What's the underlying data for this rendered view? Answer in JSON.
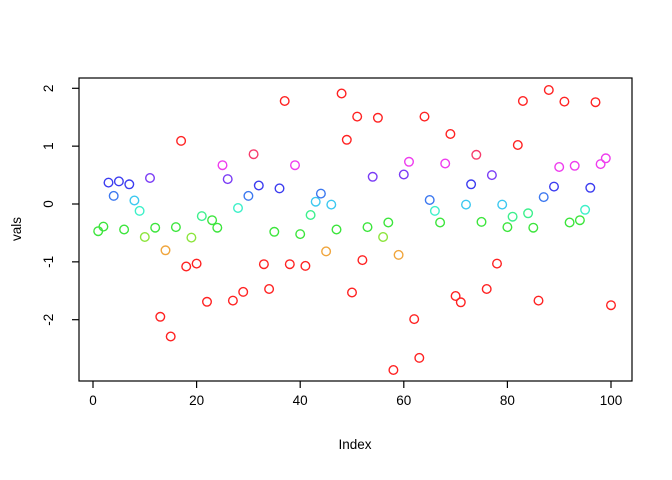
{
  "figure": {
    "background": "#FFFFFF",
    "xlabel": "Index",
    "ylabel": "vals"
  },
  "chart_data": {
    "type": "scatter",
    "title": "",
    "xlabel": "Index",
    "ylabel": "vals",
    "x_ticks": [
      0,
      20,
      40,
      60,
      80,
      100
    ],
    "y_ticks": [
      -2,
      -1,
      0,
      1,
      2
    ],
    "xlim": [
      -2.7,
      104
    ],
    "ylim": [
      -3.06,
      2.18
    ],
    "grid": false,
    "legend": "none",
    "marker": "open-circle",
    "palette": {
      "red": "#FF2222",
      "crimson": "#F73B6C",
      "magenta": "#EE3CEE",
      "purple": "#7A3BF5",
      "blue": "#3C3CF0",
      "azure": "#3C78F0",
      "cyan": "#3CC8F0",
      "turquoise": "#3CF0C8",
      "spring": "#3CF08D",
      "green": "#3CE53C",
      "chartreuse": "#8CE53C",
      "orange": "#F0A53C"
    },
    "points": [
      {
        "x": 1,
        "y": -0.47,
        "c": "green"
      },
      {
        "x": 2,
        "y": -0.39,
        "c": "green"
      },
      {
        "x": 3,
        "y": 0.37,
        "c": "blue"
      },
      {
        "x": 4,
        "y": 0.14,
        "c": "azure"
      },
      {
        "x": 5,
        "y": 0.39,
        "c": "blue"
      },
      {
        "x": 6,
        "y": -0.44,
        "c": "green"
      },
      {
        "x": 7,
        "y": 0.34,
        "c": "blue"
      },
      {
        "x": 8,
        "y": 0.06,
        "c": "cyan"
      },
      {
        "x": 9,
        "y": -0.12,
        "c": "turquoise"
      },
      {
        "x": 10,
        "y": -0.57,
        "c": "chartreuse"
      },
      {
        "x": 11,
        "y": 0.45,
        "c": "purple"
      },
      {
        "x": 12,
        "y": -0.41,
        "c": "green"
      },
      {
        "x": 13,
        "y": -1.95,
        "c": "red"
      },
      {
        "x": 14,
        "y": -0.8,
        "c": "orange"
      },
      {
        "x": 15,
        "y": -2.29,
        "c": "red"
      },
      {
        "x": 16,
        "y": -0.4,
        "c": "green"
      },
      {
        "x": 17,
        "y": 1.09,
        "c": "red"
      },
      {
        "x": 18,
        "y": -1.08,
        "c": "red"
      },
      {
        "x": 19,
        "y": -0.58,
        "c": "chartreuse"
      },
      {
        "x": 20,
        "y": -1.03,
        "c": "red"
      },
      {
        "x": 21,
        "y": -0.21,
        "c": "spring"
      },
      {
        "x": 22,
        "y": -1.69,
        "c": "red"
      },
      {
        "x": 23,
        "y": -0.28,
        "c": "green"
      },
      {
        "x": 24,
        "y": -0.41,
        "c": "green"
      },
      {
        "x": 25,
        "y": 0.67,
        "c": "magenta"
      },
      {
        "x": 26,
        "y": 0.43,
        "c": "purple"
      },
      {
        "x": 27,
        "y": -1.67,
        "c": "red"
      },
      {
        "x": 28,
        "y": -0.07,
        "c": "turquoise"
      },
      {
        "x": 29,
        "y": -1.52,
        "c": "red"
      },
      {
        "x": 30,
        "y": 0.14,
        "c": "azure"
      },
      {
        "x": 31,
        "y": 0.86,
        "c": "crimson"
      },
      {
        "x": 32,
        "y": 0.32,
        "c": "blue"
      },
      {
        "x": 33,
        "y": -1.04,
        "c": "red"
      },
      {
        "x": 34,
        "y": -1.47,
        "c": "red"
      },
      {
        "x": 35,
        "y": -0.48,
        "c": "green"
      },
      {
        "x": 36,
        "y": 0.27,
        "c": "blue"
      },
      {
        "x": 37,
        "y": 1.78,
        "c": "red"
      },
      {
        "x": 38,
        "y": -1.04,
        "c": "red"
      },
      {
        "x": 39,
        "y": 0.67,
        "c": "magenta"
      },
      {
        "x": 40,
        "y": -0.52,
        "c": "green"
      },
      {
        "x": 41,
        "y": -1.07,
        "c": "red"
      },
      {
        "x": 42,
        "y": -0.19,
        "c": "spring"
      },
      {
        "x": 43,
        "y": 0.04,
        "c": "cyan"
      },
      {
        "x": 44,
        "y": 0.18,
        "c": "azure"
      },
      {
        "x": 45,
        "y": -0.82,
        "c": "orange"
      },
      {
        "x": 46,
        "y": -0.01,
        "c": "cyan"
      },
      {
        "x": 47,
        "y": -0.44,
        "c": "green"
      },
      {
        "x": 48,
        "y": 1.91,
        "c": "red"
      },
      {
        "x": 49,
        "y": 1.11,
        "c": "red"
      },
      {
        "x": 50,
        "y": -1.53,
        "c": "red"
      },
      {
        "x": 51,
        "y": 1.51,
        "c": "red"
      },
      {
        "x": 52,
        "y": -0.97,
        "c": "red"
      },
      {
        "x": 53,
        "y": -0.4,
        "c": "green"
      },
      {
        "x": 54,
        "y": 0.47,
        "c": "purple"
      },
      {
        "x": 55,
        "y": 1.49,
        "c": "red"
      },
      {
        "x": 56,
        "y": -0.57,
        "c": "chartreuse"
      },
      {
        "x": 57,
        "y": -0.32,
        "c": "green"
      },
      {
        "x": 58,
        "y": -2.87,
        "c": "red"
      },
      {
        "x": 59,
        "y": -0.88,
        "c": "orange"
      },
      {
        "x": 60,
        "y": 0.51,
        "c": "purple"
      },
      {
        "x": 61,
        "y": 0.73,
        "c": "magenta"
      },
      {
        "x": 62,
        "y": -1.99,
        "c": "red"
      },
      {
        "x": 63,
        "y": -2.66,
        "c": "red"
      },
      {
        "x": 64,
        "y": 1.51,
        "c": "red"
      },
      {
        "x": 65,
        "y": 0.07,
        "c": "azure"
      },
      {
        "x": 66,
        "y": -0.12,
        "c": "turquoise"
      },
      {
        "x": 67,
        "y": -0.32,
        "c": "green"
      },
      {
        "x": 68,
        "y": 0.7,
        "c": "magenta"
      },
      {
        "x": 69,
        "y": 1.21,
        "c": "red"
      },
      {
        "x": 70,
        "y": -1.59,
        "c": "red"
      },
      {
        "x": 71,
        "y": -1.7,
        "c": "red"
      },
      {
        "x": 72,
        "y": -0.01,
        "c": "cyan"
      },
      {
        "x": 73,
        "y": 0.34,
        "c": "blue"
      },
      {
        "x": 74,
        "y": 0.85,
        "c": "crimson"
      },
      {
        "x": 75,
        "y": -0.31,
        "c": "green"
      },
      {
        "x": 76,
        "y": -1.47,
        "c": "red"
      },
      {
        "x": 77,
        "y": 0.5,
        "c": "purple"
      },
      {
        "x": 78,
        "y": -1.03,
        "c": "red"
      },
      {
        "x": 79,
        "y": -0.01,
        "c": "cyan"
      },
      {
        "x": 80,
        "y": -0.4,
        "c": "green"
      },
      {
        "x": 81,
        "y": -0.22,
        "c": "spring"
      },
      {
        "x": 82,
        "y": 1.02,
        "c": "red"
      },
      {
        "x": 83,
        "y": 1.78,
        "c": "red"
      },
      {
        "x": 84,
        "y": -0.16,
        "c": "spring"
      },
      {
        "x": 85,
        "y": -0.41,
        "c": "green"
      },
      {
        "x": 86,
        "y": -1.67,
        "c": "red"
      },
      {
        "x": 87,
        "y": 0.12,
        "c": "azure"
      },
      {
        "x": 88,
        "y": 1.97,
        "c": "red"
      },
      {
        "x": 89,
        "y": 0.3,
        "c": "blue"
      },
      {
        "x": 90,
        "y": 0.64,
        "c": "magenta"
      },
      {
        "x": 91,
        "y": 1.77,
        "c": "red"
      },
      {
        "x": 92,
        "y": -0.32,
        "c": "green"
      },
      {
        "x": 93,
        "y": 0.66,
        "c": "magenta"
      },
      {
        "x": 94,
        "y": -0.28,
        "c": "green"
      },
      {
        "x": 95,
        "y": -0.1,
        "c": "turquoise"
      },
      {
        "x": 96,
        "y": 0.28,
        "c": "blue"
      },
      {
        "x": 97,
        "y": 1.76,
        "c": "red"
      },
      {
        "x": 98,
        "y": 0.69,
        "c": "magenta"
      },
      {
        "x": 99,
        "y": 0.79,
        "c": "magenta"
      },
      {
        "x": 100,
        "y": -1.75,
        "c": "red"
      }
    ]
  }
}
